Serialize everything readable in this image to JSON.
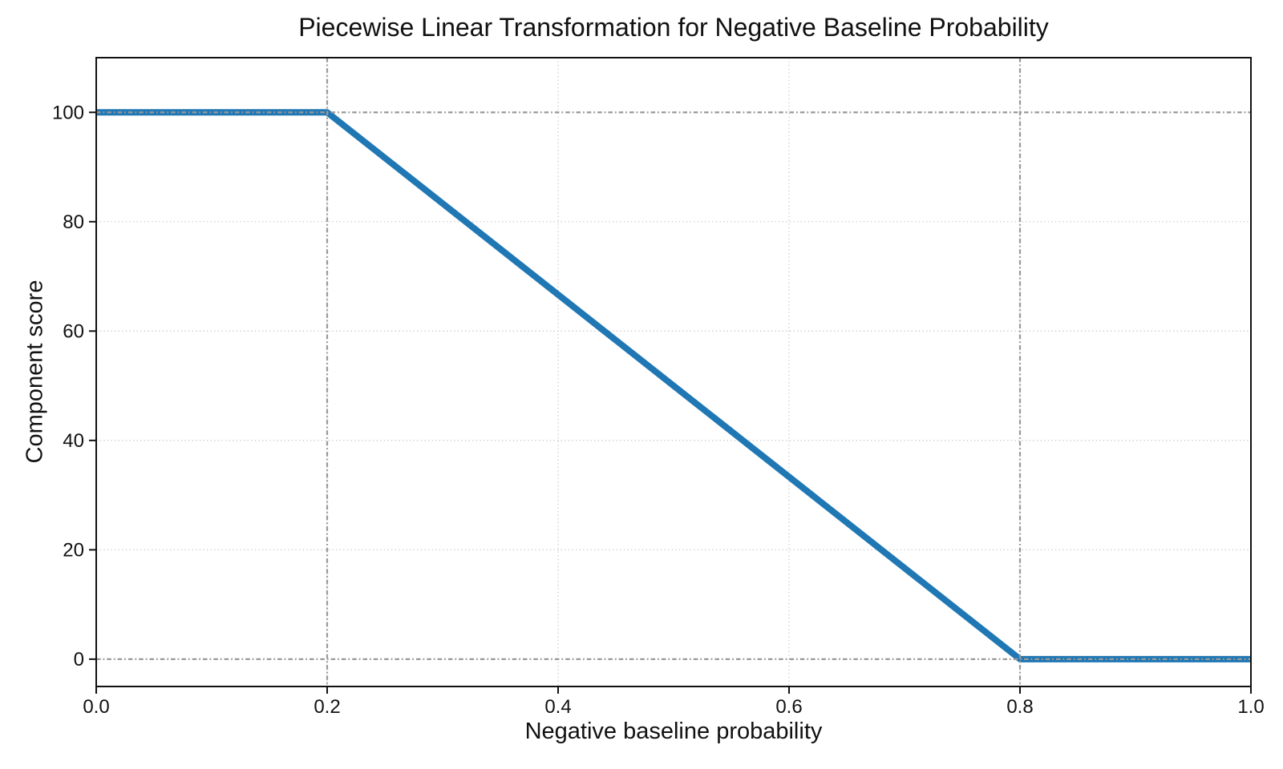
{
  "figure": {
    "background": "#ffffff"
  },
  "chart_data": {
    "type": "line",
    "title": "Piecewise Linear Transformation for Negative Baseline Probability",
    "xlabel": "Negative baseline probability",
    "ylabel": "Component score",
    "xlim": [
      0.0,
      1.0
    ],
    "ylim": [
      -5,
      110
    ],
    "xticks": [
      {
        "value": 0.0,
        "label": "0.0"
      },
      {
        "value": 0.2,
        "label": "0.2"
      },
      {
        "value": 0.4,
        "label": "0.4"
      },
      {
        "value": 0.6,
        "label": "0.6"
      },
      {
        "value": 0.8,
        "label": "0.8"
      },
      {
        "value": 1.0,
        "label": "1.0"
      }
    ],
    "yticks": [
      {
        "value": 0,
        "label": "0"
      },
      {
        "value": 20,
        "label": "20"
      },
      {
        "value": 40,
        "label": "40"
      },
      {
        "value": 60,
        "label": "60"
      },
      {
        "value": 80,
        "label": "80"
      },
      {
        "value": 100,
        "label": "100"
      }
    ],
    "grid": {
      "on": true,
      "linestyle": "dotted",
      "x_values": [
        0.2,
        0.4,
        0.6,
        0.8
      ],
      "y_values": [
        20,
        40,
        60,
        80
      ]
    },
    "reference_lines": {
      "linestyle": "dash-dot",
      "x_values": [
        0.2,
        0.8
      ],
      "y_values": [
        0,
        100
      ]
    },
    "series": [
      {
        "name": "piecewise linear transform",
        "color": "#1f77b4",
        "linewidth": 8,
        "points": [
          [
            0.0,
            100
          ],
          [
            0.2,
            100
          ],
          [
            0.8,
            0
          ],
          [
            1.0,
            0
          ]
        ]
      }
    ],
    "legend": {
      "visible": false
    },
    "colors": {
      "line": "#1f77b4",
      "reference_line": "#999999",
      "grid_line": "#cccccc",
      "axis": "#111111",
      "text": "#111111",
      "background": "#ffffff"
    }
  }
}
